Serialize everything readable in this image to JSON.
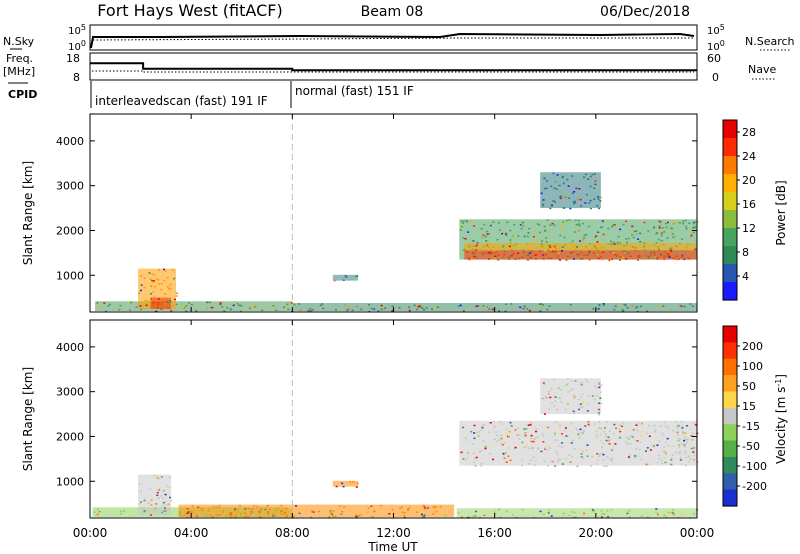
{
  "header": {
    "station": "Fort Hays West (fitACF)",
    "beam": "Beam 08",
    "date": "06/Dec/2018"
  },
  "status_panels": {
    "nsky_label": "N.Sky",
    "nsearch_label": "N.Search",
    "freq_label_1": "Freq.",
    "freq_label_2": "[MHz]",
    "nave_label": "Nave",
    "cpid_label": "CPID",
    "nsky_ticks": [
      "10^5",
      "10^0"
    ],
    "nsearch_ticks": [
      "10^5",
      "10^0"
    ],
    "freq_ticks": [
      "18",
      "8"
    ],
    "nave_ticks": [
      "60",
      "0"
    ],
    "cpid_segments": [
      {
        "label": "interleavedscan (fast) 191 IF",
        "start_hour": 0,
        "end_hour": 8
      },
      {
        "label": "normal (fast) 151 IF",
        "start_hour": 8,
        "end_hour": 24
      }
    ],
    "freq_series": {
      "x_hours": [
        0,
        2.1,
        2.1,
        8,
        8,
        24
      ],
      "mhz": [
        14.2,
        14.2,
        12.2,
        12.2,
        11.6,
        11.6
      ]
    }
  },
  "x_axis": {
    "title": "Time UT",
    "tick_labels": [
      "00:00",
      "04:00",
      "08:00",
      "12:00",
      "16:00",
      "20:00",
      "00:00"
    ]
  },
  "chart_data": [
    {
      "type": "heatmap",
      "name": "power",
      "ylabel": "Slant Range [km]",
      "colorbar_label": "Power [dB]",
      "xlim": [
        0,
        24
      ],
      "ylim": [
        180,
        4600
      ],
      "y_ticks": [
        1000,
        2000,
        3000,
        4000
      ],
      "colorbar_ticks": [
        "4",
        "8",
        "12",
        "16",
        "20",
        "24",
        "28"
      ],
      "colorbar_colors": [
        "#1a1aff",
        "#2855b0",
        "#2e8b57",
        "#49a35e",
        "#8bbd3c",
        "#d8cf1c",
        "#ffb000",
        "#ff7a00",
        "#ff2a00",
        "#e80000"
      ],
      "regions": [
        {
          "x": [
            0.2,
            8
          ],
          "y": [
            200,
            420
          ],
          "color": "#4d9a58"
        },
        {
          "x": [
            8,
            24
          ],
          "y": [
            200,
            380
          ],
          "color": "#3d8a66"
        },
        {
          "x": [
            1.9,
            3.4
          ],
          "y": [
            250,
            1150
          ],
          "color": "#ff9a00"
        },
        {
          "x": [
            2.4,
            3.2
          ],
          "y": [
            250,
            500
          ],
          "color": "#ff2a00"
        },
        {
          "x": [
            9.6,
            10.6
          ],
          "y": [
            880,
            1010
          ],
          "color": "#3c7f86"
        },
        {
          "x": [
            14.6,
            24
          ],
          "y": [
            1350,
            2250
          ],
          "color": "#4aa05e"
        },
        {
          "x": [
            14.8,
            24
          ],
          "y": [
            1350,
            1560
          ],
          "color": "#ff3500"
        },
        {
          "x": [
            14.8,
            24
          ],
          "y": [
            1560,
            1720
          ],
          "color": "#ffa500"
        },
        {
          "x": [
            17.8,
            20.2
          ],
          "y": [
            2500,
            3300
          ],
          "color": "#2e7a80"
        }
      ]
    },
    {
      "type": "heatmap",
      "name": "velocity",
      "ylabel": "Slant Range [km]",
      "colorbar_label": "Velocity [m s^-1]",
      "xlim": [
        0,
        24
      ],
      "ylim": [
        180,
        4600
      ],
      "y_ticks": [
        1000,
        2000,
        3000,
        4000
      ],
      "colorbar_ticks": [
        "200",
        "100",
        "50",
        "15",
        "-15",
        "-50",
        "-100",
        "-200"
      ],
      "colorbar_colors": [
        "#1c2fd0",
        "#2e5fa8",
        "#2f8a5e",
        "#56b048",
        "#8cd25a",
        "#c8c8c8",
        "#ffd64a",
        "#ffa020",
        "#ff7000",
        "#ff3000",
        "#e80000"
      ],
      "regions": [
        {
          "x": [
            0.1,
            8
          ],
          "y": [
            200,
            420
          ],
          "color": "#8cd25a"
        },
        {
          "x": [
            3.5,
            14.4
          ],
          "y": [
            200,
            480
          ],
          "color": "#ff8a00"
        },
        {
          "x": [
            14.5,
            24
          ],
          "y": [
            200,
            400
          ],
          "color": "#9ad26a"
        },
        {
          "x": [
            1.9,
            3.2
          ],
          "y": [
            250,
            1150
          ],
          "color": "#c8c8c8"
        },
        {
          "x": [
            9.6,
            10.6
          ],
          "y": [
            880,
            1010
          ],
          "color": "#ff8a00"
        },
        {
          "x": [
            14.6,
            24
          ],
          "y": [
            1350,
            2350
          ],
          "color": "#c8c8c8"
        },
        {
          "x": [
            17.8,
            20.2
          ],
          "y": [
            2500,
            3300
          ],
          "color": "#c8c8c8"
        }
      ]
    }
  ]
}
